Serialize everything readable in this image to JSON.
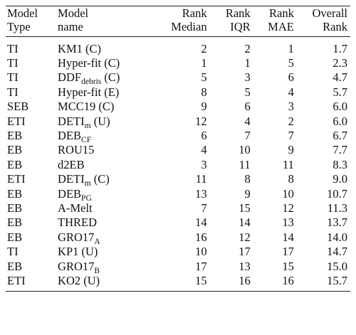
{
  "table": {
    "headers": {
      "model_type": [
        "Model",
        "Type"
      ],
      "model_name": [
        "Model",
        "name"
      ],
      "rank_median": [
        "Rank",
        "Median"
      ],
      "rank_iqr": [
        "Rank",
        "IQR"
      ],
      "rank_mae": [
        "Rank",
        "MAE"
      ],
      "overall_rank": [
        "Overall",
        "Rank"
      ]
    },
    "rows": [
      {
        "type": "TI",
        "name": "KM1 (C)",
        "name_sub": "",
        "name_suffix": "",
        "median": "2",
        "iqr": "2",
        "mae": "1",
        "overall": "1.7"
      },
      {
        "type": "TI",
        "name": "Hyper-fit (C)",
        "name_sub": "",
        "name_suffix": "",
        "median": "1",
        "iqr": "1",
        "mae": "5",
        "overall": "2.3"
      },
      {
        "type": "TI",
        "name": "DDF",
        "name_sub": "debris",
        "name_suffix": " (C)",
        "median": "5",
        "iqr": "3",
        "mae": "6",
        "overall": "4.7"
      },
      {
        "type": "TI",
        "name": "Hyper-fit (E)",
        "name_sub": "",
        "name_suffix": "",
        "median": "8",
        "iqr": "5",
        "mae": "4",
        "overall": "5.7"
      },
      {
        "type": "SEB",
        "name": "MCC19 (C)",
        "name_sub": "",
        "name_suffix": "",
        "median": "9",
        "iqr": "6",
        "mae": "3",
        "overall": "6.0"
      },
      {
        "type": "ETI",
        "name": "DETI",
        "name_sub": "m",
        "name_suffix": " (U)",
        "median": "12",
        "iqr": "4",
        "mae": "2",
        "overall": "6.0"
      },
      {
        "type": "EB",
        "name": "DEB",
        "name_sub": "CF",
        "name_suffix": "",
        "median": "6",
        "iqr": "7",
        "mae": "7",
        "overall": "6.7"
      },
      {
        "type": "EB",
        "name": "ROU15",
        "name_sub": "",
        "name_suffix": "",
        "median": "4",
        "iqr": "10",
        "mae": "9",
        "overall": "7.7"
      },
      {
        "type": "EB",
        "name": "d2EB",
        "name_sub": "",
        "name_suffix": "",
        "median": "3",
        "iqr": "11",
        "mae": "11",
        "overall": "8.3"
      },
      {
        "type": "ETI",
        "name": "DETI",
        "name_sub": "m",
        "name_suffix": " (C)",
        "median": "11",
        "iqr": "8",
        "mae": "8",
        "overall": "9.0"
      },
      {
        "type": "EB",
        "name": "DEB",
        "name_sub": "PG",
        "name_suffix": "",
        "median": "13",
        "iqr": "9",
        "mae": "10",
        "overall": "10.7"
      },
      {
        "type": "EB",
        "name": "A-Melt",
        "name_sub": "",
        "name_suffix": "",
        "median": "7",
        "iqr": "15",
        "mae": "12",
        "overall": "11.3"
      },
      {
        "type": "EB",
        "name": "THRED",
        "name_sub": "",
        "name_suffix": "",
        "median": "14",
        "iqr": "14",
        "mae": "13",
        "overall": "13.7"
      },
      {
        "type": "EB",
        "name": "GRO17",
        "name_sub": "A",
        "name_suffix": "",
        "median": "16",
        "iqr": "12",
        "mae": "14",
        "overall": "14.0"
      },
      {
        "type": "TI",
        "name": "KP1 (U)",
        "name_sub": "",
        "name_suffix": "",
        "median": "10",
        "iqr": "17",
        "mae": "17",
        "overall": "14.7"
      },
      {
        "type": "EB",
        "name": "GRO17",
        "name_sub": "B",
        "name_suffix": "",
        "median": "17",
        "iqr": "13",
        "mae": "15",
        "overall": "15.0"
      },
      {
        "type": "ETI",
        "name": "KO2 (U)",
        "name_sub": "",
        "name_suffix": "",
        "median": "15",
        "iqr": "16",
        "mae": "16",
        "overall": "15.7"
      }
    ]
  }
}
